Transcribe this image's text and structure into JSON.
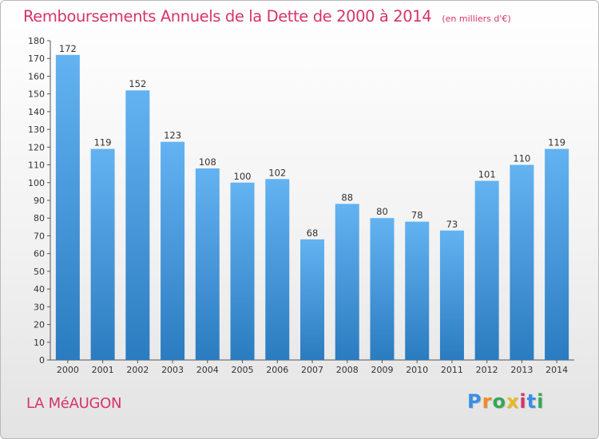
{
  "title": "Remboursements Annuels de la Dette de 2000 à 2014",
  "unit_note": "(en milliers d'€)",
  "commune": "LA MéAUGON",
  "logo": {
    "letters": [
      "P",
      "r",
      "o",
      "x",
      "i",
      "t",
      "i"
    ],
    "colors": [
      "#3a8ee6",
      "#f08a24",
      "#34a853",
      "#e8b923",
      "#d6336c",
      "#3a8ee6",
      "#34a853"
    ]
  },
  "colors": {
    "bar_top": "#63b3f2",
    "bar_bottom": "#2b7bc0",
    "title": "#d6336c"
  },
  "chart_data": {
    "type": "bar",
    "title": "Remboursements Annuels de la Dette de 2000 à 2014",
    "categories": [
      "2000",
      "2001",
      "2002",
      "2003",
      "2004",
      "2005",
      "2006",
      "2007",
      "2008",
      "2009",
      "2010",
      "2011",
      "2012",
      "2013",
      "2014"
    ],
    "values": [
      172,
      119,
      152,
      123,
      108,
      100,
      102,
      68,
      88,
      80,
      78,
      73,
      101,
      110,
      119
    ],
    "ylim": [
      0,
      180
    ],
    "ytick_step": 10,
    "grid": false,
    "data_labels": true
  }
}
